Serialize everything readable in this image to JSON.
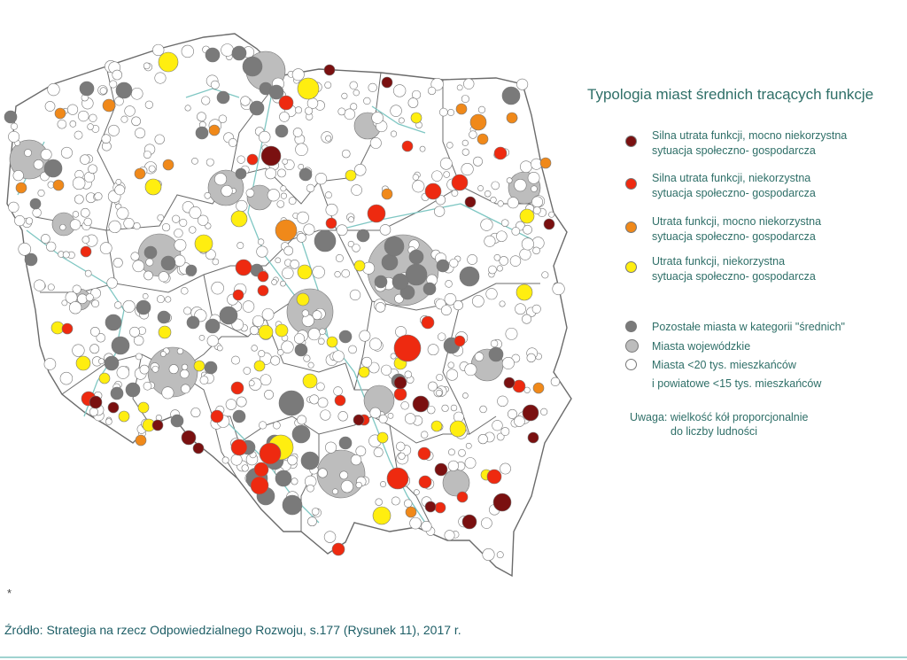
{
  "legend": {
    "title": "Typologia miast średnich tracących funkcje",
    "items": [
      {
        "line1": "Silna utrata funkcji, mocno niekorzystna",
        "line2": "sytuacja społeczno- gospodarcza",
        "color": "#7a1010"
      },
      {
        "line1": "Silna utrata funkcji, niekorzystna",
        "line2": "sytuacja społeczno- gospodarcza",
        "color": "#ee2a10"
      },
      {
        "line1": "Utrata funkcji, mocno niekorzystna",
        "line2": "sytuacja społeczno- gospodarcza",
        "color": "#f0891a"
      },
      {
        "line1": "Utrata funkcji, niekorzystna",
        "line2": "sytuacja społeczno- gospodarcza",
        "color": "#ffee10"
      },
      {
        "line1": "Pozostałe miasta w kategorii \"średnich\"",
        "line2": "",
        "color": "#7a7a7a"
      },
      {
        "line1": "Miasta wojewódzkie",
        "line2": "",
        "color": "#bdbdbd"
      },
      {
        "line1": "Miasta <20 tys. mieszkańców",
        "line2": "i powiatowe <15 tys. mieszkańców",
        "color": "#ffffff"
      }
    ],
    "note_line1": "Uwaga: wielkość kół proporcjonalnie",
    "note_line2": "do liczby ludności"
  },
  "footer": {
    "asterisk": "*",
    "source": "Źródło: Strategia na rzecz Odpowiedzialnego Rozwoju, s.177 (Rysunek 11), 2017 r."
  },
  "colors": {
    "border": "#6b6b6b",
    "river": "#7fc7c3",
    "dark_red": "#7a1010",
    "red": "#ee2a10",
    "orange": "#f0891a",
    "yellow": "#ffee10",
    "gray": "#7a7a7a",
    "light_gray": "#bdbdbd"
  }
}
